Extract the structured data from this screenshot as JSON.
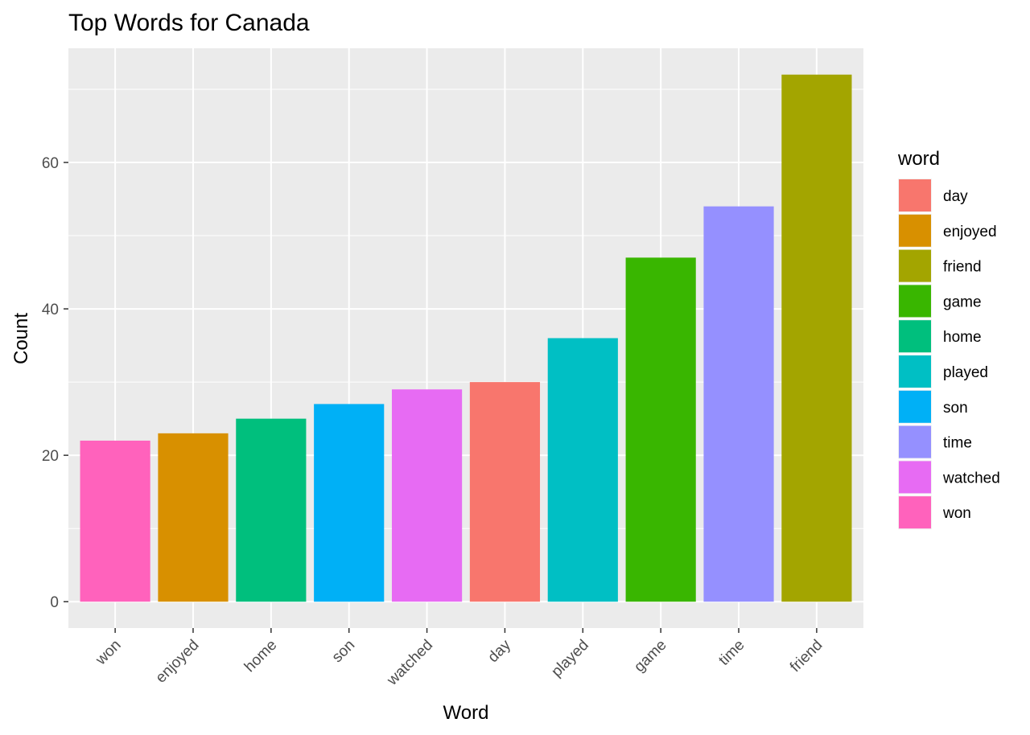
{
  "chart_data": {
    "type": "bar",
    "title": "Top Words for Canada",
    "xlabel": "Word",
    "ylabel": "Count",
    "categories": [
      "won",
      "enjoyed",
      "home",
      "son",
      "watched",
      "day",
      "played",
      "game",
      "time",
      "friend"
    ],
    "values": [
      22,
      23,
      25,
      27,
      29,
      30,
      36,
      47,
      54,
      72
    ],
    "ylim": [
      -3.6,
      75.6
    ],
    "yticks": [
      0,
      20,
      40,
      60
    ],
    "ytick_labels": [
      "0",
      "20",
      "40",
      "60"
    ],
    "grid": true,
    "panel_background": "#ebebeb",
    "legend": {
      "title": "word",
      "placement": "right",
      "entries": [
        {
          "label": "day",
          "color": "#f8766d"
        },
        {
          "label": "enjoyed",
          "color": "#d89000"
        },
        {
          "label": "friend",
          "color": "#a3a500"
        },
        {
          "label": "game",
          "color": "#39b600"
        },
        {
          "label": "home",
          "color": "#00bf7d"
        },
        {
          "label": "played",
          "color": "#00bfc4"
        },
        {
          "label": "son",
          "color": "#00b0f6"
        },
        {
          "label": "time",
          "color": "#9590ff"
        },
        {
          "label": "watched",
          "color": "#e76bf3"
        },
        {
          "label": "won",
          "color": "#ff62bc"
        }
      ]
    }
  }
}
